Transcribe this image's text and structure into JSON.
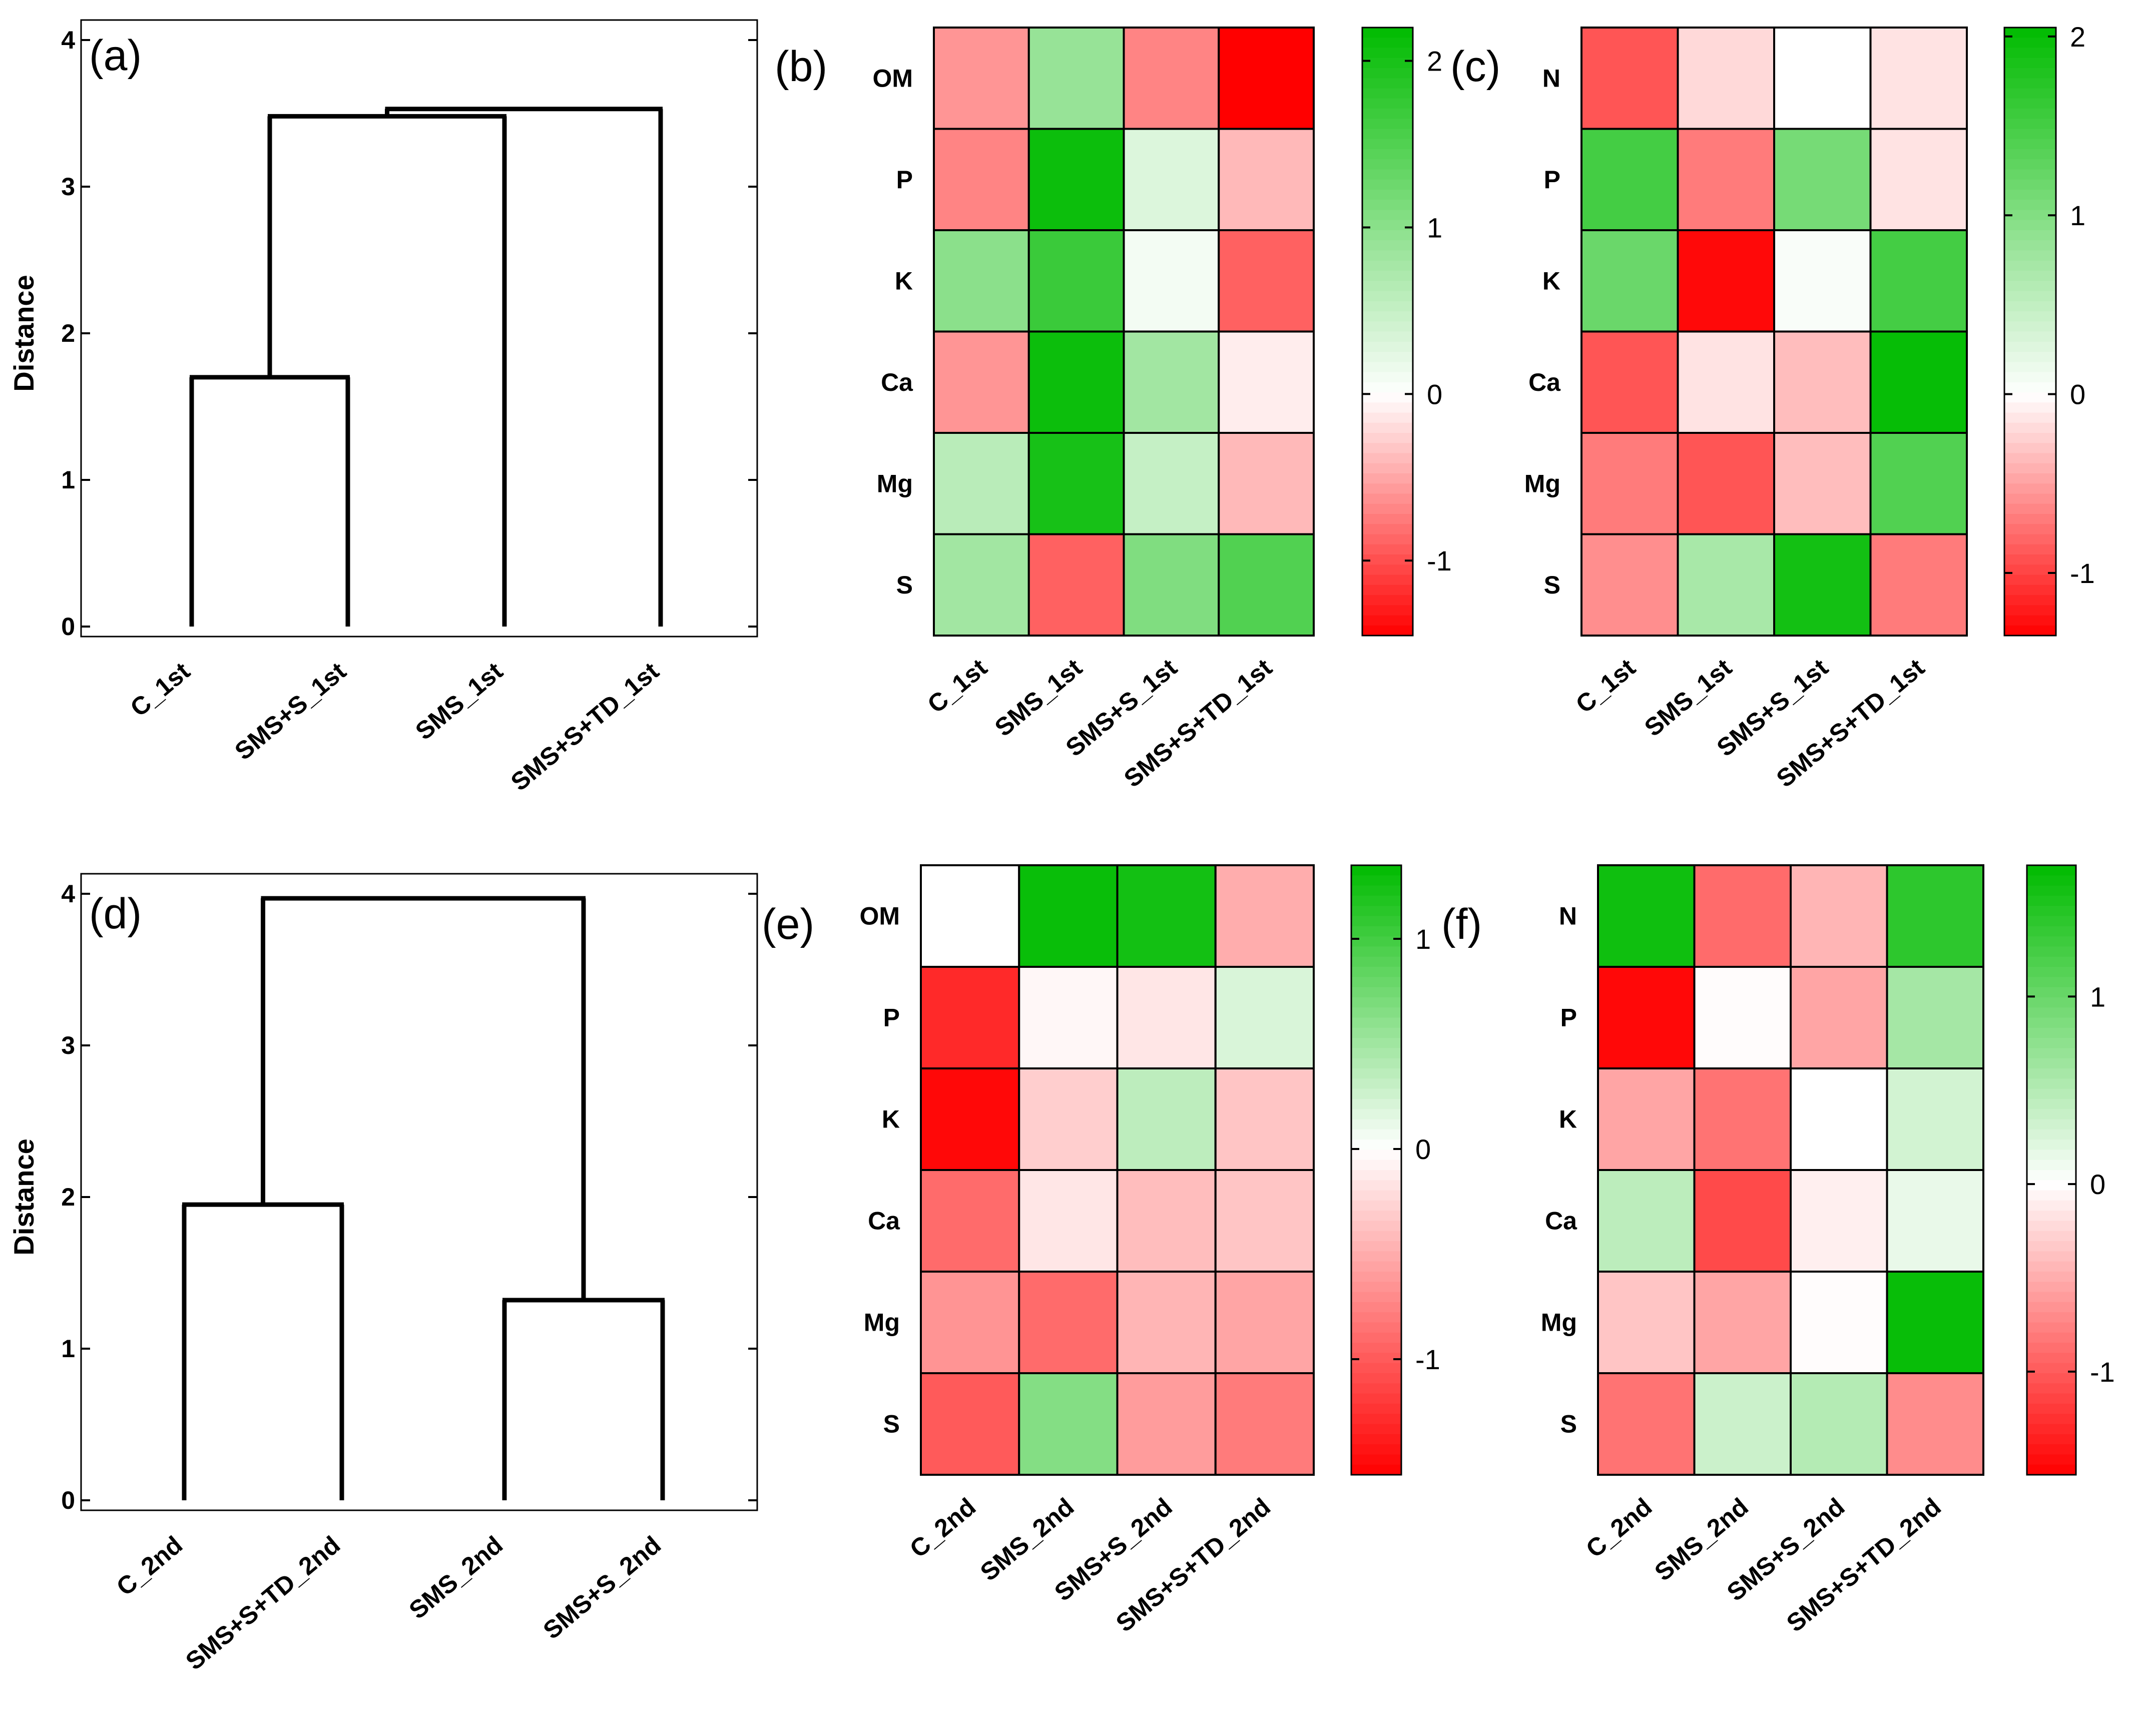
{
  "chart_data": [
    {
      "panel": "(a)",
      "type": "dendrogram",
      "ylabel": "Distance",
      "ylim": [
        0,
        4
      ],
      "yticks": [
        "0",
        "1",
        "2",
        "3",
        "4"
      ],
      "leaves": [
        "C_1st",
        "SMS+S_1st",
        "SMS_1st",
        "SMS+S+TD_1st"
      ],
      "merges": [
        {
          "left": 0,
          "right": 1,
          "height": 1.7
        },
        {
          "left": "m0",
          "right": 2,
          "height": 3.48
        },
        {
          "left": "m1",
          "right": 3,
          "height": 3.53
        }
      ]
    },
    {
      "panel": "(b)",
      "type": "heatmap",
      "rows": [
        "OM",
        "P",
        "K",
        "Ca",
        "Mg",
        "S"
      ],
      "cols": [
        "C_1st",
        "SMS_1st",
        "SMS+S_1st",
        "SMS+S+TD_1st"
      ],
      "values": [
        [
          -0.6,
          0.9,
          -0.7,
          -1.5
        ],
        [
          -0.7,
          2.1,
          0.3,
          -0.4
        ],
        [
          1.0,
          1.7,
          0.1,
          -0.9
        ],
        [
          -0.6,
          2.1,
          0.8,
          -0.1
        ],
        [
          0.6,
          2.0,
          0.5,
          -0.4
        ],
        [
          0.8,
          -0.9,
          1.1,
          1.5
        ]
      ],
      "colorbar": {
        "min": -1.45,
        "max": 2.2,
        "ticks": [
          "-1",
          "0",
          "1",
          "2"
        ]
      }
    },
    {
      "panel": "(c)",
      "type": "heatmap",
      "rows": [
        "N",
        "P",
        "K",
        "Ca",
        "Mg",
        "S"
      ],
      "cols": [
        "C_1st",
        "SMS_1st",
        "SMS+S_1st",
        "SMS+S+TD_1st"
      ],
      "values": [
        [
          -0.9,
          -0.2,
          0.0,
          -0.15
        ],
        [
          1.5,
          -0.7,
          1.1,
          -0.15
        ],
        [
          1.2,
          -1.3,
          0.05,
          1.5
        ],
        [
          -0.9,
          -0.15,
          -0.35,
          2.0
        ],
        [
          -0.7,
          -0.9,
          -0.35,
          1.4
        ],
        [
          -0.6,
          0.7,
          1.9,
          -0.7
        ]
      ],
      "colorbar": {
        "min": -1.35,
        "max": 2.05,
        "ticks": [
          "-1",
          "0",
          "1",
          "2"
        ]
      }
    },
    {
      "panel": "(d)",
      "type": "dendrogram",
      "ylabel": "Distance",
      "ylim": [
        0,
        4
      ],
      "yticks": [
        "0",
        "1",
        "2",
        "3",
        "4"
      ],
      "leaves": [
        "C_2nd",
        "SMS+S+TD_2nd",
        "SMS_2nd",
        "SMS+S_2nd"
      ],
      "merges": [
        {
          "left": 0,
          "right": 1,
          "height": 1.95
        },
        {
          "left": 2,
          "right": 3,
          "height": 1.32
        },
        {
          "left": "m0",
          "right": "m1",
          "height": 3.97
        }
      ]
    },
    {
      "panel": "(e)",
      "type": "heatmap",
      "rows": [
        "OM",
        "P",
        "K",
        "Ca",
        "Mg",
        "S"
      ],
      "cols": [
        "C_2nd",
        "SMS_2nd",
        "SMS+S_2nd",
        "SMS+S+TD_2nd"
      ],
      "values": [
        [
          0.0,
          1.3,
          1.25,
          -0.5
        ],
        [
          -1.3,
          -0.05,
          -0.15,
          0.2
        ],
        [
          -1.5,
          -0.3,
          0.35,
          -0.35
        ],
        [
          -0.9,
          -0.15,
          -0.4,
          -0.35
        ],
        [
          -0.65,
          -0.9,
          -0.45,
          -0.55
        ],
        [
          -1.0,
          0.65,
          -0.6,
          -0.8
        ]
      ],
      "colorbar": {
        "min": -1.55,
        "max": 1.35,
        "ticks": [
          "-1",
          "0",
          "1"
        ]
      }
    },
    {
      "panel": "(f)",
      "type": "heatmap",
      "rows": [
        "N",
        "P",
        "K",
        "Ca",
        "Mg",
        "S"
      ],
      "cols": [
        "C_2nd",
        "SMS_2nd",
        "SMS+S_2nd",
        "SMS+S+TD_2nd"
      ],
      "values": [
        [
          1.6,
          -0.9,
          -0.45,
          1.4
        ],
        [
          -1.5,
          -0.02,
          -0.55,
          0.6
        ],
        [
          -0.55,
          -0.85,
          0.0,
          0.3
        ],
        [
          0.45,
          -1.1,
          -0.1,
          0.15
        ],
        [
          -0.35,
          -0.55,
          -0.02,
          1.65
        ],
        [
          -0.85,
          0.35,
          0.5,
          -0.7
        ]
      ],
      "colorbar": {
        "min": -1.55,
        "max": 1.7,
        "ticks": [
          "-1",
          "0",
          "1"
        ]
      }
    }
  ],
  "colors": {
    "low": "#ff0000",
    "mid": "#ffffff",
    "high": "#00bb00",
    "line": "#000000"
  }
}
